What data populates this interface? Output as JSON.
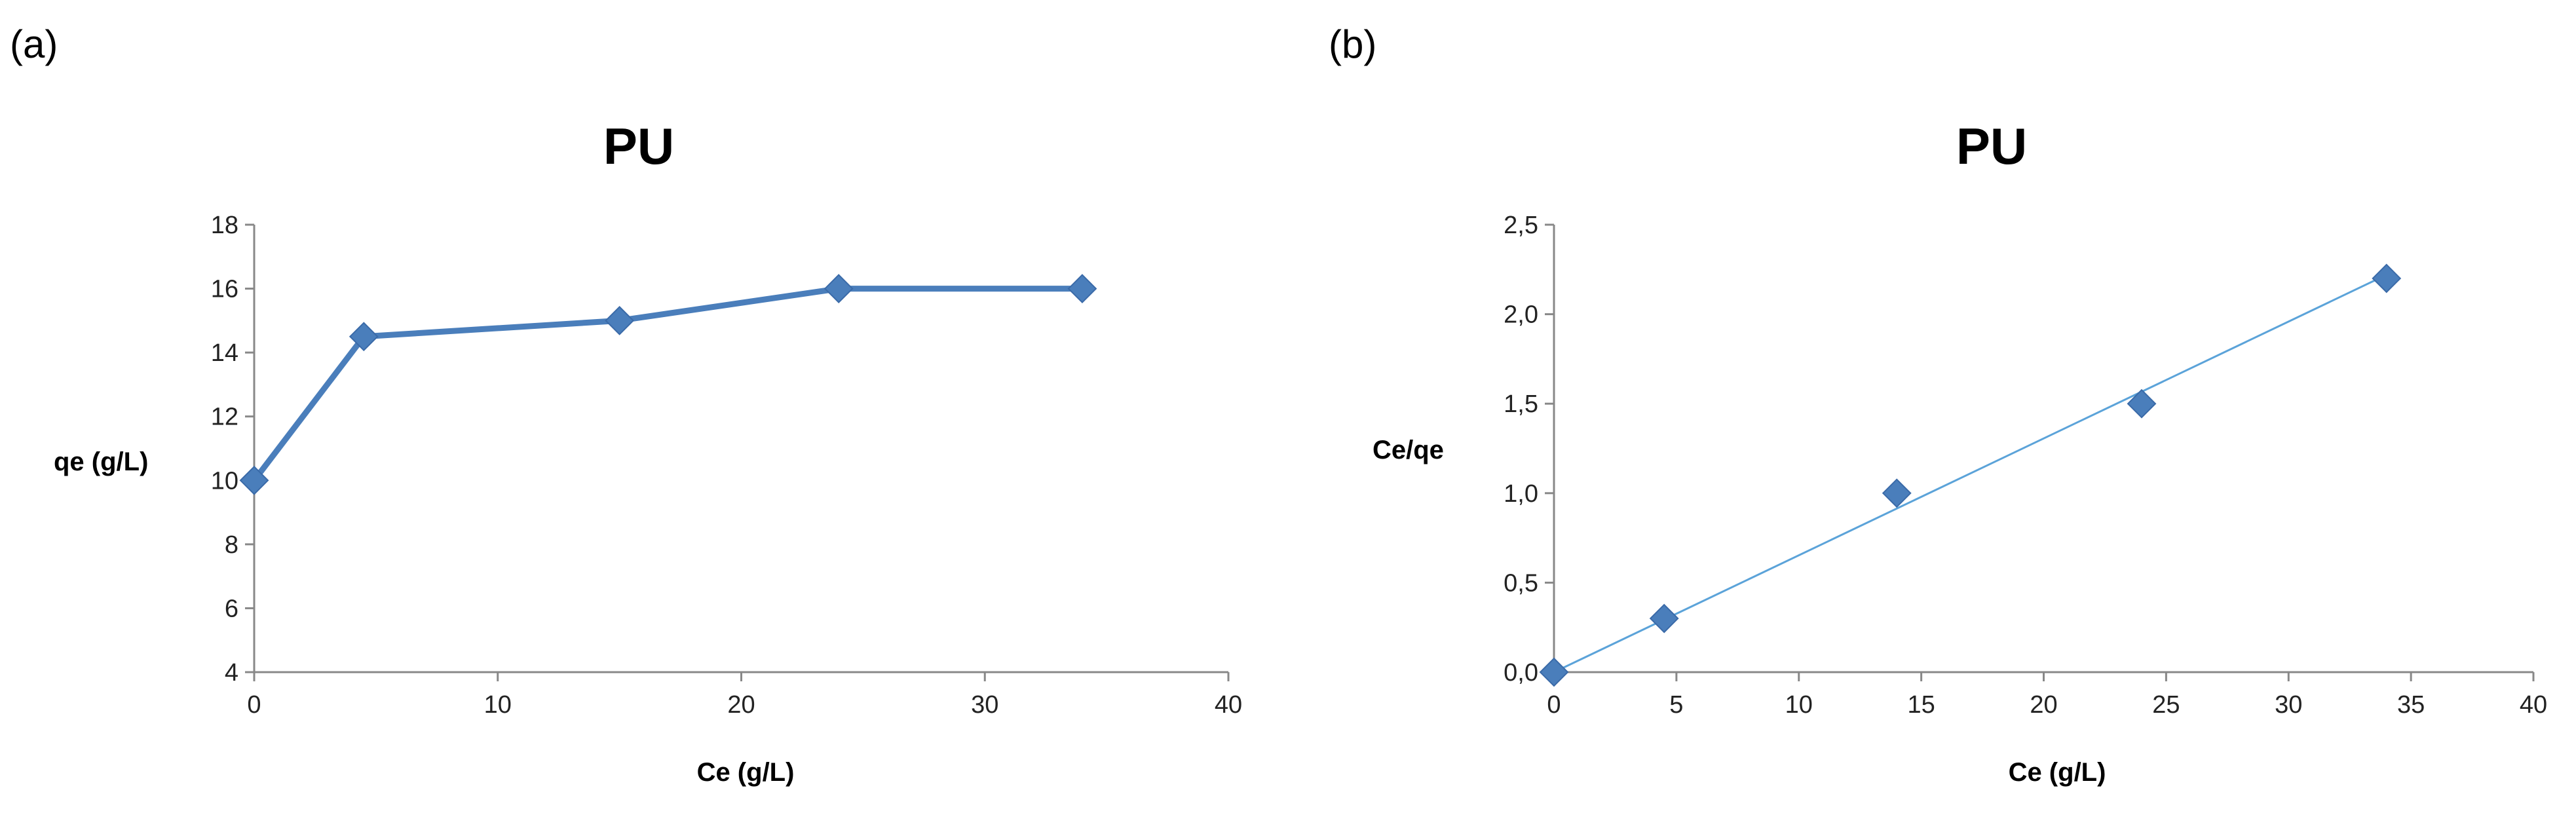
{
  "chart_data": [
    {
      "panel_label": "(a)",
      "type": "line",
      "title": "PU",
      "xlabel": "Ce (g/L)",
      "ylabel": "qe (g/L)",
      "xlim": [
        0,
        40
      ],
      "ylim": [
        4,
        18
      ],
      "xticks": [
        "0",
        "10",
        "20",
        "30",
        "40"
      ],
      "yticks": [
        "4",
        "6",
        "8",
        "10",
        "12",
        "14",
        "16",
        "18"
      ],
      "grid": false,
      "series": [
        {
          "x": [
            0,
            4.5,
            15,
            24,
            34
          ],
          "y": [
            10,
            14.5,
            15,
            16,
            16
          ],
          "color": "#4a7ebb",
          "marker": "diamond",
          "line": true
        }
      ]
    },
    {
      "panel_label": "(b)",
      "type": "scatter",
      "title": "PU",
      "xlabel": "Ce (g/L)",
      "ylabel": "Ce/qe",
      "xlim": [
        0,
        40
      ],
      "ylim": [
        0,
        2.5
      ],
      "xticks": [
        "0",
        "5",
        "10",
        "15",
        "20",
        "25",
        "30",
        "35",
        "40"
      ],
      "yticks": [
        "0,0",
        "0,5",
        "1,0",
        "1,5",
        "2,0",
        "2,5"
      ],
      "grid": false,
      "series": [
        {
          "x": [
            0,
            4.5,
            14,
            24,
            34
          ],
          "y": [
            0,
            0.3,
            1.0,
            1.5,
            2.2
          ],
          "color": "#4a7ebb",
          "marker": "diamond",
          "line": false
        }
      ],
      "trendline": {
        "x": [
          0,
          34
        ],
        "y": [
          0,
          2.22
        ],
        "color": "#5ba3d9"
      }
    }
  ]
}
